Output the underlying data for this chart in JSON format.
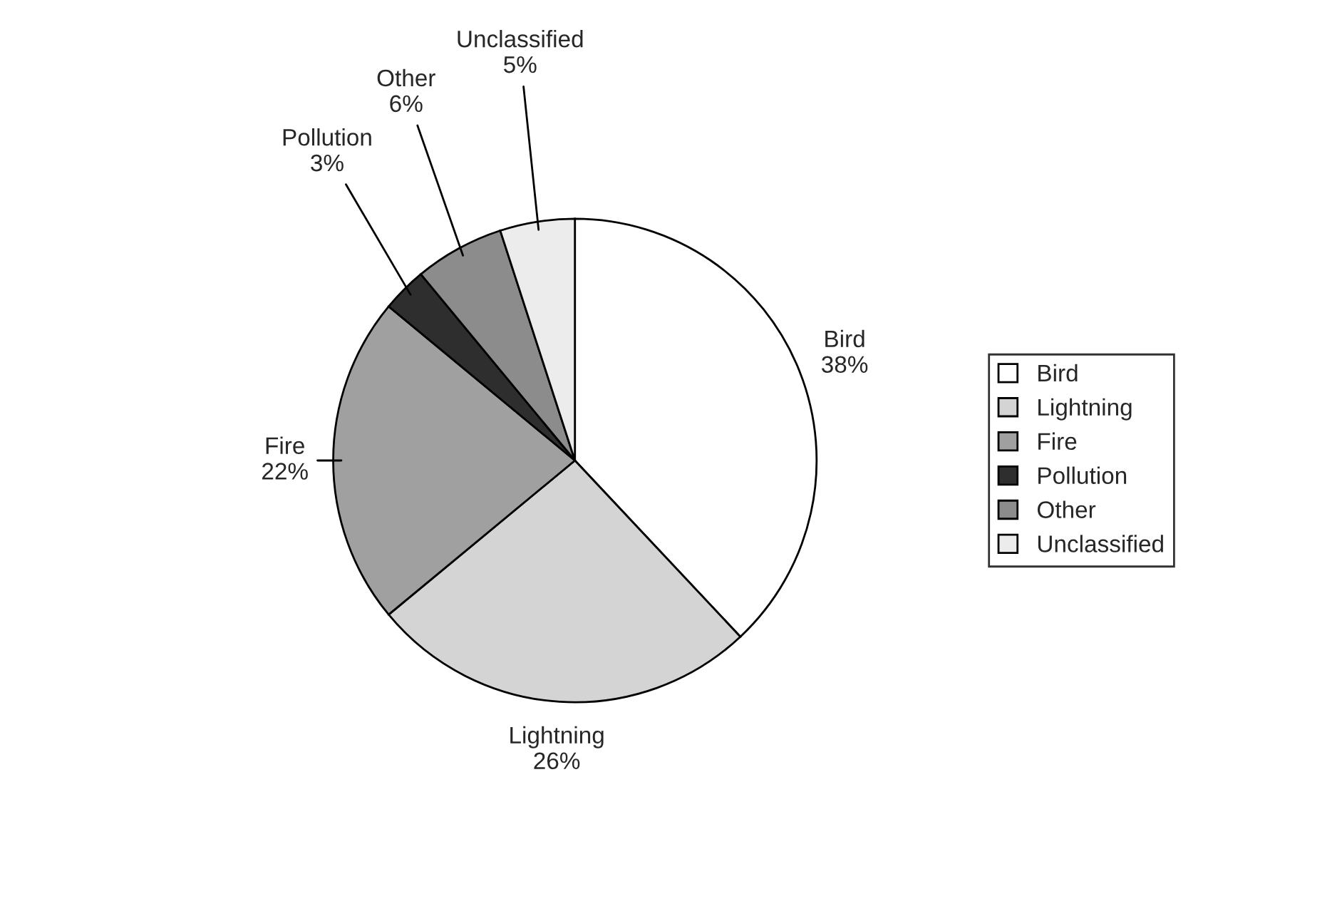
{
  "chart_data": {
    "type": "pie",
    "categories": [
      "Bird",
      "Lightning",
      "Fire",
      "Pollution",
      "Other",
      "Unclassified"
    ],
    "values": [
      38,
      26,
      22,
      3,
      6,
      5
    ],
    "value_labels": [
      "38%",
      "26%",
      "22%",
      "3%",
      "6%",
      "5%"
    ],
    "colors": [
      "#ffffff",
      "#d4d4d4",
      "#a0a0a0",
      "#2e2e2e",
      "#8c8c8c",
      "#ececec"
    ],
    "legend": "right"
  }
}
